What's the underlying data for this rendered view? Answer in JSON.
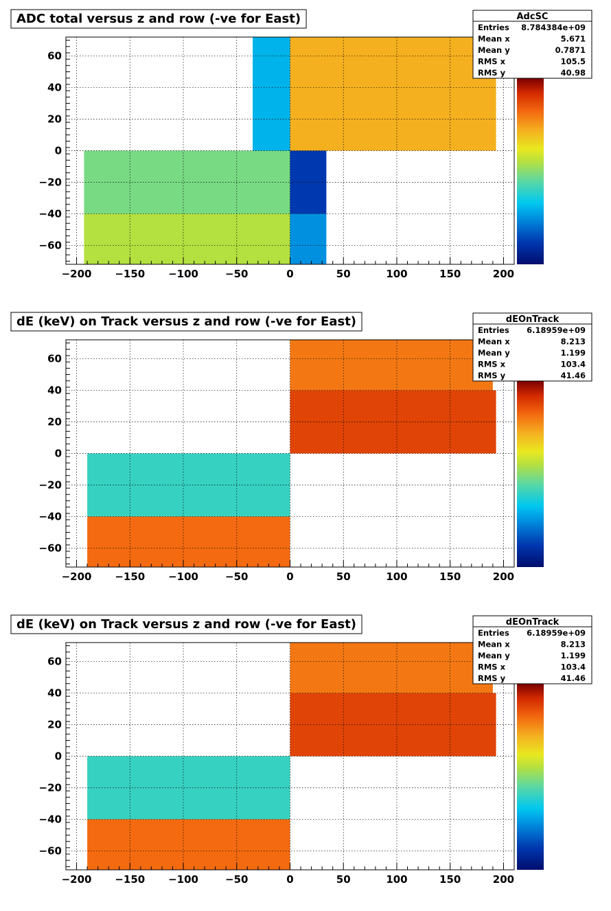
{
  "chart_data": [
    {
      "type": "heatmap",
      "title": "ADC total versus z and row (-ve for East)",
      "xlabel": "",
      "ylabel": "",
      "xlim": [
        -210,
        210
      ],
      "ylim": [
        -72,
        72
      ],
      "xticks": [
        -200,
        -150,
        -100,
        -50,
        0,
        50,
        100,
        150,
        200
      ],
      "yticks": [
        -60,
        -40,
        -20,
        0,
        20,
        40,
        60
      ],
      "grid": true,
      "colorscale": "rainbow (dark blue low → dark red high)",
      "stats": {
        "name": "AdcSC",
        "rows": [
          {
            "label": "Entries",
            "value": "8.784384e+09"
          },
          {
            "label": "Mean x",
            "value": "5.671"
          },
          {
            "label": "Mean y",
            "value": "0.7871"
          },
          {
            "label": "RMS x",
            "value": "105.5"
          },
          {
            "label": "RMS y",
            "value": "40.98"
          }
        ]
      },
      "regions": [
        {
          "x": [
            -35,
            0
          ],
          "y": [
            0,
            72
          ],
          "level": 0.3
        },
        {
          "x": [
            0,
            193
          ],
          "y": [
            0,
            72
          ],
          "level": 0.72
        },
        {
          "x": [
            -193,
            0
          ],
          "y": [
            -40,
            0
          ],
          "level": 0.48
        },
        {
          "x": [
            -193,
            0
          ],
          "y": [
            -72,
            -40
          ],
          "level": 0.55
        },
        {
          "x": [
            0,
            34
          ],
          "y": [
            -40,
            0
          ],
          "level": 0.12
        },
        {
          "x": [
            0,
            34
          ],
          "y": [
            -72,
            -40
          ],
          "level": 0.25
        }
      ]
    },
    {
      "type": "heatmap",
      "title": "dE (keV) on Track versus z and row (-ve for East)",
      "xlabel": "",
      "ylabel": "",
      "xlim": [
        -210,
        210
      ],
      "ylim": [
        -72,
        72
      ],
      "xticks": [
        -200,
        -150,
        -100,
        -50,
        0,
        50,
        100,
        150,
        200
      ],
      "yticks": [
        -60,
        -40,
        -20,
        0,
        20,
        40,
        60
      ],
      "grid": true,
      "colorscale": "rainbow (dark blue low → dark red high)",
      "stats": {
        "name": "dEOnTrack",
        "rows": [
          {
            "label": "Entries",
            "value": "6.18959e+09"
          },
          {
            "label": "Mean x",
            "value": "8.213"
          },
          {
            "label": "Mean y",
            "value": "1.199"
          },
          {
            "label": "RMS x",
            "value": "103.4"
          },
          {
            "label": "RMS y",
            "value": "41.46"
          }
        ]
      },
      "regions": [
        {
          "x": [
            0,
            190
          ],
          "y": [
            40,
            72
          ],
          "level": 0.8
        },
        {
          "x": [
            0,
            193
          ],
          "y": [
            0,
            40
          ],
          "level": 0.88
        },
        {
          "x": [
            -190,
            0
          ],
          "y": [
            -40,
            0
          ],
          "level": 0.4
        },
        {
          "x": [
            -190,
            0
          ],
          "y": [
            -72,
            -40
          ],
          "level": 0.82
        }
      ]
    },
    {
      "type": "heatmap",
      "title": "dE (keV) on Track versus z and row (-ve for East)",
      "xlabel": "",
      "ylabel": "",
      "xlim": [
        -210,
        210
      ],
      "ylim": [
        -72,
        72
      ],
      "xticks": [
        -200,
        -150,
        -100,
        -50,
        0,
        50,
        100,
        150,
        200
      ],
      "yticks": [
        -60,
        -40,
        -20,
        0,
        20,
        40,
        60
      ],
      "grid": true,
      "colorscale": "rainbow (dark blue low → dark red high)",
      "stats": {
        "name": "dEOnTrack",
        "rows": [
          {
            "label": "Entries",
            "value": "6.18959e+09"
          },
          {
            "label": "Mean x",
            "value": "8.213"
          },
          {
            "label": "Mean y",
            "value": "1.199"
          },
          {
            "label": "RMS x",
            "value": "103.4"
          },
          {
            "label": "RMS y",
            "value": "41.46"
          }
        ]
      },
      "regions": [
        {
          "x": [
            0,
            190
          ],
          "y": [
            40,
            72
          ],
          "level": 0.8
        },
        {
          "x": [
            0,
            193
          ],
          "y": [
            0,
            40
          ],
          "level": 0.88
        },
        {
          "x": [
            -190,
            0
          ],
          "y": [
            -40,
            0
          ],
          "level": 0.4
        },
        {
          "x": [
            -190,
            0
          ],
          "y": [
            -72,
            -40
          ],
          "level": 0.82
        }
      ]
    }
  ]
}
